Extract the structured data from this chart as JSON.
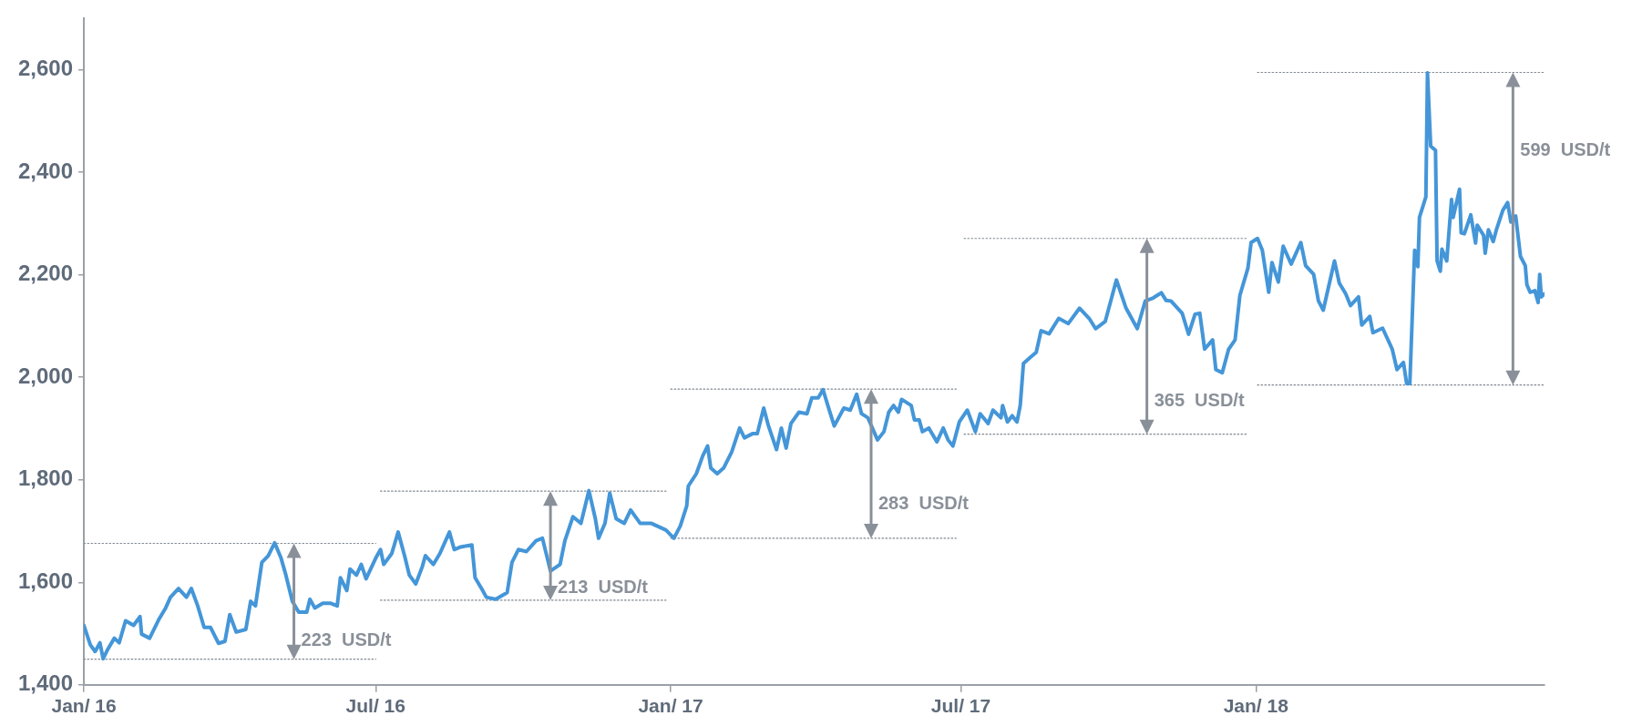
{
  "chart_data": {
    "type": "line",
    "xlim": [
      "2016-01-01",
      "2018-06-30"
    ],
    "xticks": [
      {
        "value": "2016-01-01",
        "label": "Jan/ 16"
      },
      {
        "value": "2016-07-01",
        "label": "Jul/ 16"
      },
      {
        "value": "2017-01-01",
        "label": "Jan/ 17"
      },
      {
        "value": "2017-07-01",
        "label": "Jul/ 17"
      },
      {
        "value": "2018-01-01",
        "label": "Jan/ 18"
      }
    ],
    "ylim": [
      1400,
      2700
    ],
    "yticks": [
      {
        "value": 1400,
        "label": "1,400"
      },
      {
        "value": 1600,
        "label": "1,600"
      },
      {
        "value": 1800,
        "label": "1,800"
      },
      {
        "value": 2000,
        "label": "2,000"
      },
      {
        "value": 2200,
        "label": "2,200"
      },
      {
        "value": 2400,
        "label": "2,400"
      },
      {
        "value": 2600,
        "label": "2,600"
      }
    ],
    "grid": false,
    "legend": false,
    "marker": "none",
    "series": [
      {
        "color": "#4496d8",
        "line_style": "solid",
        "x": [
          "2016-01-01",
          "2016-01-05",
          "2016-01-08",
          "2016-01-11",
          "2016-01-13",
          "2016-01-16",
          "2016-01-20",
          "2016-01-23",
          "2016-01-27",
          "2016-02-01",
          "2016-02-05",
          "2016-02-06",
          "2016-02-11",
          "2016-02-17",
          "2016-02-21",
          "2016-02-24",
          "2016-02-29",
          "2016-03-05",
          "2016-03-08",
          "2016-03-12",
          "2016-03-16",
          "2016-03-20",
          "2016-03-25",
          "2016-03-29",
          "2016-04-01",
          "2016-04-05",
          "2016-04-11",
          "2016-04-14",
          "2016-04-17",
          "2016-04-21",
          "2016-04-25",
          "2016-04-29",
          "2016-05-03",
          "2016-05-06",
          "2016-05-10",
          "2016-05-14",
          "2016-05-19",
          "2016-05-21",
          "2016-05-24",
          "2016-05-29",
          "2016-06-03",
          "2016-06-07",
          "2016-06-09",
          "2016-06-13",
          "2016-06-15",
          "2016-06-19",
          "2016-06-22",
          "2016-06-25",
          "2016-07-01",
          "2016-07-04",
          "2016-07-06",
          "2016-07-11",
          "2016-07-15",
          "2016-07-19",
          "2016-07-22",
          "2016-07-26",
          "2016-07-30",
          "2016-08-01",
          "2016-08-06",
          "2016-08-10",
          "2016-08-16",
          "2016-08-19",
          "2016-08-23",
          "2016-08-30",
          "2016-09-01",
          "2016-09-05",
          "2016-09-08",
          "2016-09-14",
          "2016-09-21",
          "2016-09-24",
          "2016-09-28",
          "2016-10-03",
          "2016-10-09",
          "2016-10-13",
          "2016-10-18",
          "2016-10-24",
          "2016-10-27",
          "2016-11-01",
          "2016-11-06",
          "2016-11-11",
          "2016-11-15",
          "2016-11-17",
          "2016-11-21",
          "2016-11-24",
          "2016-11-28",
          "2016-12-03",
          "2016-12-07",
          "2016-12-13",
          "2016-12-20",
          "2016-12-29",
          "2017-01-03",
          "2017-01-07",
          "2017-01-11",
          "2017-01-12",
          "2017-01-17",
          "2017-01-21",
          "2017-01-24",
          "2017-01-26",
          "2017-01-30",
          "2017-02-03",
          "2017-02-08",
          "2017-02-13",
          "2017-02-16",
          "2017-02-21",
          "2017-02-24",
          "2017-02-28",
          "2017-03-03",
          "2017-03-08",
          "2017-03-11",
          "2017-03-14",
          "2017-03-17",
          "2017-03-22",
          "2017-03-27",
          "2017-03-30",
          "2017-04-03",
          "2017-04-06",
          "2017-04-09",
          "2017-04-13",
          "2017-04-19",
          "2017-04-23",
          "2017-04-27",
          "2017-04-30",
          "2017-05-04",
          "2017-05-10",
          "2017-05-14",
          "2017-05-17",
          "2017-05-20",
          "2017-05-23",
          "2017-05-25",
          "2017-05-31",
          "2017-06-02",
          "2017-06-05",
          "2017-06-07",
          "2017-06-11",
          "2017-06-16",
          "2017-06-20",
          "2017-06-23",
          "2017-06-26",
          "2017-06-30",
          "2017-07-05",
          "2017-07-10",
          "2017-07-13",
          "2017-07-18",
          "2017-07-21",
          "2017-07-26",
          "2017-07-27",
          "2017-07-30",
          "2017-08-02",
          "2017-08-05",
          "2017-08-07",
          "2017-08-09",
          "2017-08-13",
          "2017-08-17",
          "2017-08-20",
          "2017-08-25",
          "2017-08-31",
          "2017-09-06",
          "2017-09-13",
          "2017-09-19",
          "2017-09-23",
          "2017-09-29",
          "2017-10-06",
          "2017-10-12",
          "2017-10-19",
          "2017-10-24",
          "2017-10-29",
          "2017-11-03",
          "2017-11-06",
          "2017-11-09",
          "2017-11-16",
          "2017-11-20",
          "2017-11-24",
          "2017-11-27",
          "2017-11-30",
          "2017-12-05",
          "2017-12-07",
          "2017-12-11",
          "2017-12-15",
          "2017-12-19",
          "2017-12-22",
          "2017-12-27",
          "2017-12-29",
          "2018-01-02",
          "2018-01-05",
          "2018-01-09",
          "2018-01-11",
          "2018-01-15",
          "2018-01-18",
          "2018-01-23",
          "2018-01-29",
          "2018-02-01",
          "2018-02-06",
          "2018-02-09",
          "2018-02-12",
          "2018-02-19",
          "2018-02-22",
          "2018-02-26",
          "2018-03-01",
          "2018-03-06",
          "2018-03-08",
          "2018-03-13",
          "2018-03-15",
          "2018-03-21",
          "2018-03-27",
          "2018-03-30",
          "2018-04-03",
          "2018-04-05",
          "2018-04-07",
          "2018-04-10",
          "2018-04-12",
          "2018-04-13",
          "2018-04-17",
          "2018-04-18",
          "2018-04-20",
          "2018-04-23",
          "2018-04-24",
          "2018-04-26",
          "2018-04-27",
          "2018-04-30",
          "2018-05-03",
          "2018-05-04",
          "2018-05-08",
          "2018-05-09",
          "2018-05-11",
          "2018-05-15",
          "2018-05-18",
          "2018-05-19",
          "2018-05-23",
          "2018-05-24",
          "2018-05-26",
          "2018-05-29",
          "2018-05-31",
          "2018-06-04",
          "2018-06-07",
          "2018-06-09",
          "2018-06-12",
          "2018-06-15",
          "2018-06-18",
          "2018-06-19",
          "2018-06-21",
          "2018-06-24",
          "2018-06-26",
          "2018-06-27",
          "2018-06-28",
          "2018-06-30"
        ],
        "values": [
          1516,
          1478,
          1465,
          1482,
          1451,
          1470,
          1491,
          1482,
          1525,
          1516,
          1533,
          1499,
          1491,
          1529,
          1550,
          1571,
          1588,
          1571,
          1588,
          1554,
          1512,
          1512,
          1481,
          1485,
          1537,
          1503,
          1508,
          1563,
          1554,
          1639,
          1652,
          1677,
          1647,
          1614,
          1563,
          1542,
          1542,
          1567,
          1550,
          1559,
          1559,
          1554,
          1609,
          1584,
          1626,
          1614,
          1635,
          1607,
          1647,
          1664,
          1635,
          1656,
          1698,
          1652,
          1614,
          1597,
          1630,
          1652,
          1635,
          1656,
          1698,
          1664,
          1669,
          1673,
          1609,
          1588,
          1571,
          1567,
          1580,
          1639,
          1664,
          1660,
          1681,
          1686,
          1622,
          1635,
          1681,
          1728,
          1715,
          1779,
          1724,
          1686,
          1715,
          1774,
          1724,
          1715,
          1741,
          1715,
          1715,
          1702,
          1686,
          1710,
          1749,
          1788,
          1812,
          1847,
          1866,
          1823,
          1812,
          1823,
          1854,
          1901,
          1882,
          1890,
          1890,
          1940,
          1905,
          1859,
          1901,
          1862,
          1910,
          1932,
          1929,
          1960,
          1960,
          1976,
          1945,
          1905,
          1940,
          1936,
          1967,
          1929,
          1921,
          1878,
          1894,
          1932,
          1945,
          1932,
          1957,
          1945,
          1917,
          1917,
          1894,
          1901,
          1874,
          1901,
          1878,
          1866,
          1913,
          1936,
          1894,
          1929,
          1910,
          1936,
          1921,
          1945,
          1913,
          1925,
          1913,
          1945,
          2027,
          2038,
          2049,
          2091,
          2085,
          2115,
          2105,
          2135,
          2115,
          2095,
          2109,
          2190,
          2135,
          2095,
          2149,
          2155,
          2165,
          2150,
          2149,
          2125,
          2084,
          2123,
          2125,
          2055,
          2073,
          2015,
          2009,
          2055,
          2073,
          2160,
          2213,
          2263,
          2271,
          2248,
          2166,
          2224,
          2186,
          2256,
          2221,
          2263,
          2218,
          2201,
          2149,
          2131,
          2227,
          2184,
          2163,
          2140,
          2157,
          2102,
          2119,
          2087,
          2096,
          2055,
          2015,
          2029,
          1988,
          1988,
          2248,
          2216,
          2312,
          2352,
          2594,
          2451,
          2443,
          2227,
          2207,
          2250,
          2227,
          2347,
          2312,
          2367,
          2282,
          2280,
          2317,
          2262,
          2297,
          2277,
          2242,
          2288,
          2265,
          2288,
          2326,
          2341,
          2303,
          2315,
          2236,
          2218,
          2181,
          2166,
          2169,
          2146,
          2201,
          2157,
          2163
        ]
      },
      {
        "type": "line",
        "color": "#808890",
        "line_style": "dotted",
        "x": [
          "2016-01-01",
          "2016-07-01"
        ],
        "values": [
          1450,
          1450
        ]
      },
      {
        "type": "line",
        "color": "#808890",
        "line_style": "dotted",
        "x": [
          "2016-01-01",
          "2016-07-01"
        ],
        "values": [
          1676,
          1676
        ]
      },
      {
        "type": "line",
        "color": "#808890",
        "line_style": "dotted",
        "x": [
          "2016-07-04",
          "2016-12-29"
        ],
        "values": [
          1565,
          1565
        ]
      },
      {
        "type": "line",
        "color": "#808890",
        "line_style": "dotted",
        "x": [
          "2016-07-04",
          "2016-12-29"
        ],
        "values": [
          1778,
          1778
        ]
      },
      {
        "type": "line",
        "color": "#808890",
        "line_style": "dotted",
        "x": [
          "2017-01-01",
          "2017-06-28"
        ],
        "values": [
          1686,
          1686
        ]
      },
      {
        "type": "line",
        "color": "#808890",
        "line_style": "dotted",
        "x": [
          "2017-01-01",
          "2017-06-28"
        ],
        "values": [
          1977,
          1977
        ]
      },
      {
        "type": "line",
        "color": "#808890",
        "line_style": "dotted",
        "x": [
          "2017-07-03",
          "2017-12-27"
        ],
        "values": [
          1889,
          1889
        ]
      },
      {
        "type": "line",
        "color": "#808890",
        "line_style": "dotted",
        "x": [
          "2017-07-03",
          "2017-12-27"
        ],
        "values": [
          2271,
          2271
        ]
      },
      {
        "type": "line",
        "color": "#808890",
        "line_style": "dotted",
        "x": [
          "2018-01-02",
          "2018-06-30"
        ],
        "values": [
          1985,
          1985
        ]
      },
      {
        "type": "line",
        "color": "#808890",
        "line_style": "dotted",
        "x": [
          "2018-01-02",
          "2018-06-30"
        ],
        "values": [
          2595,
          2595
        ]
      }
    ],
    "annotations": [
      {
        "text": "223  USD/t",
        "x": "2016-05-11",
        "y": 1450
      },
      {
        "text": "213  USD/t",
        "x": "2016-10-18",
        "y": 1565
      },
      {
        "text": "283  USD/t",
        "x": "2017-05-06",
        "y": 1686
      },
      {
        "text": "365  USD/t",
        "x": "2017-10-25",
        "y": 1889
      },
      "599  USD/t"
    ]
  }
}
